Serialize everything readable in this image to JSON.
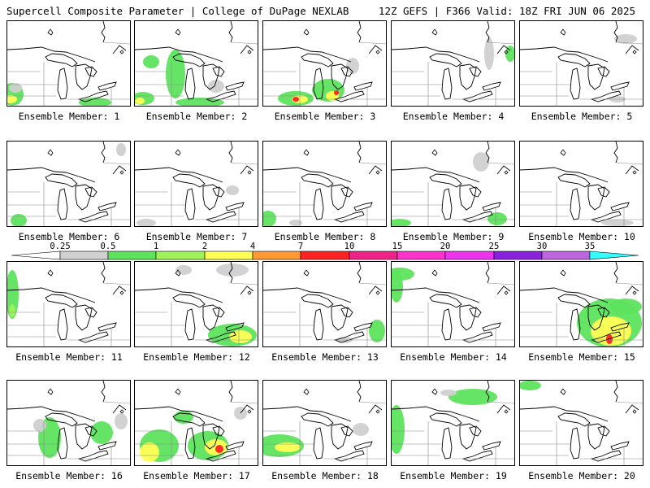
{
  "header": {
    "left": "Supercell Composite Parameter | College of DuPage NEXLAB",
    "right": "12Z GEFS | F366 Valid: 18Z FRI JUN 06 2025"
  },
  "colorbar": {
    "ticks": [
      "0.25",
      "0.5",
      "1",
      "2",
      "4",
      "7",
      "10",
      "15",
      "20",
      "25",
      "30",
      "35"
    ],
    "colors": [
      "#d0d0d0",
      "#5ee35e",
      "#9ff25a",
      "#ffff55",
      "#ff9933",
      "#ff2222",
      "#ee2288",
      "#ff33cc",
      "#ee33ee",
      "#8822dd",
      "#bb66dd",
      "#33ffff"
    ]
  },
  "members": [
    {
      "label": "Ensemble Member: 1"
    },
    {
      "label": "Ensemble Member: 2"
    },
    {
      "label": "Ensemble Member: 3"
    },
    {
      "label": "Ensemble Member: 4"
    },
    {
      "label": "Ensemble Member: 5"
    },
    {
      "label": "Ensemble Member: 6"
    },
    {
      "label": "Ensemble Member: 7"
    },
    {
      "label": "Ensemble Member: 8"
    },
    {
      "label": "Ensemble Member: 9"
    },
    {
      "label": "Ensemble Member: 10"
    },
    {
      "label": "Ensemble Member: 11"
    },
    {
      "label": "Ensemble Member: 12"
    },
    {
      "label": "Ensemble Member: 13"
    },
    {
      "label": "Ensemble Member: 14"
    },
    {
      "label": "Ensemble Member: 15"
    },
    {
      "label": "Ensemble Member: 16"
    },
    {
      "label": "Ensemble Member: 17"
    },
    {
      "label": "Ensemble Member: 18"
    },
    {
      "label": "Ensemble Member: 19"
    },
    {
      "label": "Ensemble Member: 20"
    }
  ]
}
